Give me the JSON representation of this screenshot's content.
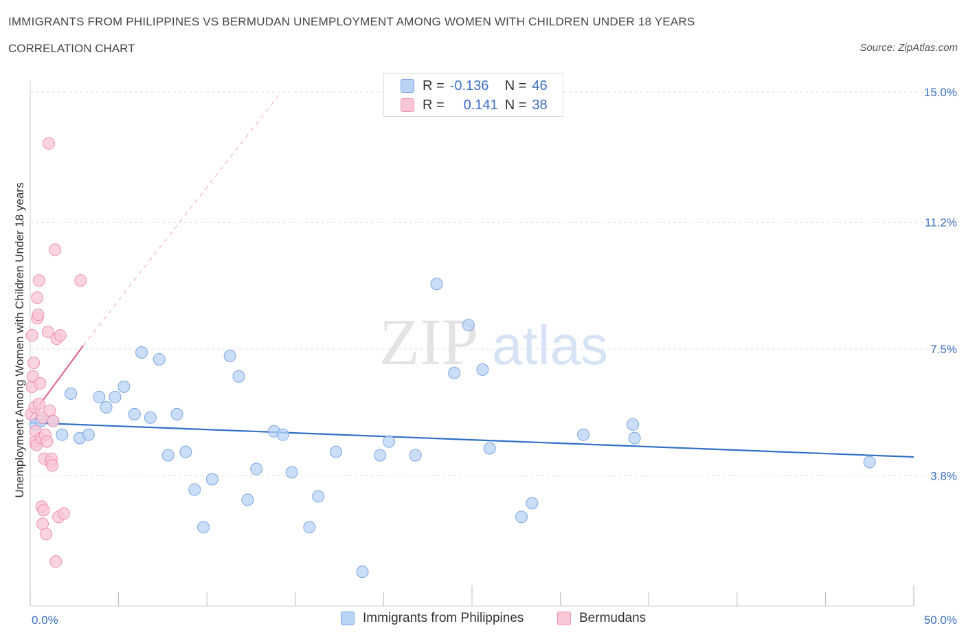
{
  "header": {
    "title": "IMMIGRANTS FROM PHILIPPINES VS BERMUDAN UNEMPLOYMENT AMONG WOMEN WITH CHILDREN UNDER 18 YEARS",
    "subtitle": "CORRELATION CHART",
    "source": "Source: ZipAtlas.com"
  },
  "watermark": {
    "zip": "ZIP",
    "atlas": "atlas"
  },
  "legend": {
    "rows": [
      {
        "r_label": "R =",
        "r_value": "-0.136",
        "n_label": "N =",
        "n_value": "46"
      },
      {
        "r_label": "R =",
        "r_value": "0.141",
        "n_label": "N =",
        "n_value": "38"
      }
    ]
  },
  "colors": {
    "blue_fill": "#b9d3f5",
    "blue_stroke": "#7aa5e0",
    "blue_line": "#2f6fc7",
    "pink_fill": "#f9c6d6",
    "pink_stroke": "#ee8fb0",
    "pink_line": "#e06890",
    "grid": "#dddddd",
    "tick_label": "#3b6fc4"
  },
  "chart_data": {
    "type": "scatter",
    "title": "IMMIGRANTS FROM PHILIPPINES VS BERMUDAN UNEMPLOYMENT AMONG WOMEN WITH CHILDREN UNDER 18 YEARS",
    "subtitle": "CORRELATION CHART",
    "xlabel": "",
    "ylabel": "Unemployment Among Women with Children Under 18 years",
    "xlim": [
      0,
      50
    ],
    "ylim": [
      0,
      15.5
    ],
    "x_tick_labels": [
      "0.0%",
      "50.0%"
    ],
    "y_ticks": [
      3.8,
      7.5,
      11.2,
      15.0
    ],
    "y_tick_labels": [
      "3.8%",
      "7.5%",
      "11.2%",
      "15.0%"
    ],
    "grid": true,
    "legend_position": "bottom",
    "series": [
      {
        "name": "Immigrants from Philippines",
        "points": [
          [
            0.3,
            5.3
          ],
          [
            0.6,
            5.4
          ],
          [
            1.3,
            5.4
          ],
          [
            1.8,
            5.0
          ],
          [
            2.3,
            6.2
          ],
          [
            2.8,
            4.9
          ],
          [
            3.3,
            5.0
          ],
          [
            3.9,
            6.1
          ],
          [
            4.3,
            5.8
          ],
          [
            4.8,
            6.1
          ],
          [
            5.3,
            6.4
          ],
          [
            5.9,
            5.6
          ],
          [
            6.3,
            7.4
          ],
          [
            6.8,
            5.5
          ],
          [
            7.3,
            7.2
          ],
          [
            7.8,
            4.4
          ],
          [
            8.3,
            5.6
          ],
          [
            8.8,
            4.5
          ],
          [
            9.3,
            3.4
          ],
          [
            9.8,
            2.3
          ],
          [
            10.3,
            3.7
          ],
          [
            11.3,
            7.3
          ],
          [
            11.8,
            6.7
          ],
          [
            12.3,
            3.1
          ],
          [
            12.8,
            4.0
          ],
          [
            13.8,
            5.1
          ],
          [
            14.3,
            5.0
          ],
          [
            14.8,
            3.9
          ],
          [
            15.8,
            2.3
          ],
          [
            16.3,
            3.2
          ],
          [
            17.3,
            4.5
          ],
          [
            18.8,
            1.0
          ],
          [
            19.8,
            4.4
          ],
          [
            20.3,
            4.8
          ],
          [
            21.8,
            4.4
          ],
          [
            23.0,
            9.4
          ],
          [
            24.0,
            6.8
          ],
          [
            24.8,
            8.2
          ],
          [
            25.6,
            6.9
          ],
          [
            26.0,
            4.6
          ],
          [
            27.8,
            2.6
          ],
          [
            28.4,
            3.0
          ],
          [
            31.3,
            5.0
          ],
          [
            34.1,
            5.3
          ],
          [
            34.2,
            4.9
          ],
          [
            47.5,
            4.2
          ]
        ]
      },
      {
        "name": "Bermudans",
        "points": [
          [
            0.05,
            5.6
          ],
          [
            0.1,
            7.9
          ],
          [
            0.1,
            6.4
          ],
          [
            0.15,
            6.7
          ],
          [
            0.2,
            7.1
          ],
          [
            0.25,
            5.8
          ],
          [
            0.3,
            5.1
          ],
          [
            0.3,
            4.8
          ],
          [
            0.35,
            4.7
          ],
          [
            0.4,
            9.0
          ],
          [
            0.4,
            8.4
          ],
          [
            0.45,
            8.5
          ],
          [
            0.5,
            9.5
          ],
          [
            0.5,
            5.9
          ],
          [
            0.55,
            6.5
          ],
          [
            0.6,
            4.9
          ],
          [
            0.65,
            2.9
          ],
          [
            0.7,
            2.4
          ],
          [
            0.7,
            5.5
          ],
          [
            0.75,
            2.8
          ],
          [
            0.8,
            4.3
          ],
          [
            0.85,
            5.0
          ],
          [
            0.9,
            2.1
          ],
          [
            0.95,
            4.8
          ],
          [
            1.0,
            8.0
          ],
          [
            1.05,
            13.5
          ],
          [
            1.1,
            5.7
          ],
          [
            1.15,
            4.2
          ],
          [
            1.2,
            4.3
          ],
          [
            1.25,
            4.1
          ],
          [
            1.3,
            5.4
          ],
          [
            1.4,
            10.4
          ],
          [
            1.45,
            1.3
          ],
          [
            1.5,
            7.8
          ],
          [
            1.6,
            2.6
          ],
          [
            1.9,
            2.7
          ],
          [
            1.7,
            7.9
          ],
          [
            2.85,
            9.5
          ]
        ]
      }
    ],
    "trendlines": [
      {
        "series": "Immigrants from Philippines",
        "x": [
          0,
          50
        ],
        "y": [
          5.35,
          4.35
        ],
        "style": "solid"
      },
      {
        "series": "Bermudans",
        "x": [
          0,
          3.0
        ],
        "y": [
          5.5,
          7.6
        ],
        "style": "solid"
      },
      {
        "series": "Bermudans",
        "x": [
          3.0,
          14.2
        ],
        "y": [
          7.6,
          15.0
        ],
        "style": "dashed"
      }
    ]
  }
}
